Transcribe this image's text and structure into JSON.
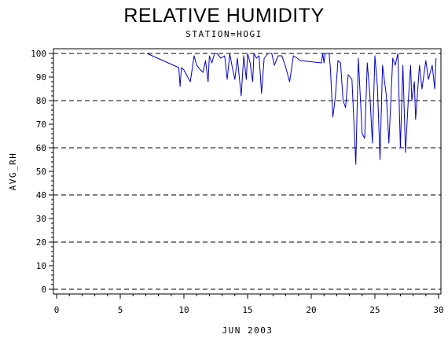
{
  "chart_data": {
    "type": "line",
    "title": "RELATIVE HUMIDITY",
    "subtitle": "STATION=HOGI",
    "xlabel": "JUN 2003",
    "ylabel": "AVG_RH",
    "xlim": [
      0,
      30
    ],
    "ylim": [
      0,
      100
    ],
    "xticks": [
      0,
      5,
      10,
      15,
      20,
      25,
      30
    ],
    "yticks": [
      0,
      10,
      20,
      30,
      40,
      50,
      60,
      70,
      80,
      90,
      100
    ],
    "grid": "horizontal dashed at 0, 20, 40, 60, 80, 100",
    "colors": {
      "line": "#0000cc",
      "axis": "#000000",
      "grid": "#000000"
    },
    "series": [
      {
        "x": [
          7.1,
          9.6,
          9.7,
          9.8,
          10.0,
          10.5,
          10.8,
          11.0,
          11.3,
          11.5,
          11.7,
          11.9,
          12.0,
          12.2,
          12.4,
          12.6,
          12.9,
          13.2,
          13.4,
          13.6,
          13.8,
          14.0,
          14.2,
          14.5,
          14.7,
          14.9,
          15.0,
          15.2,
          15.4,
          15.5,
          15.7,
          15.9,
          16.1,
          16.3,
          16.6,
          16.9,
          17.1,
          17.4,
          17.7,
          18.0,
          18.3,
          18.6,
          18.9,
          19.1,
          20.8,
          20.9,
          21.0,
          21.1,
          21.4,
          21.5,
          21.7,
          21.9,
          22.1,
          22.3,
          22.5,
          22.7,
          22.9,
          23.2,
          23.5,
          23.7,
          24.0,
          24.2,
          24.4,
          24.6,
          24.8,
          25.0,
          25.2,
          25.4,
          25.6,
          25.9,
          26.1,
          26.4,
          26.6,
          26.8,
          27.0,
          27.2,
          27.4,
          27.6,
          27.8,
          27.9,
          28.0,
          28.1,
          28.2,
          28.3,
          28.5,
          28.6,
          28.7,
          29.0,
          29.2,
          29.5,
          29.7,
          29.8
        ],
        "values": [
          100,
          94,
          86,
          94,
          93,
          88,
          99,
          95,
          93,
          92,
          97,
          88,
          99,
          96,
          100,
          100,
          98,
          99,
          89,
          100,
          94,
          89,
          98,
          82,
          99,
          89,
          100,
          96,
          88,
          100,
          98,
          99,
          83,
          98,
          100,
          100,
          95,
          99,
          99,
          94,
          88,
          99,
          98,
          97,
          96,
          100,
          96,
          100,
          100,
          94,
          73,
          82,
          97,
          96,
          80,
          77,
          91,
          89,
          53,
          98,
          66,
          64,
          96,
          83,
          62,
          99,
          86,
          55,
          95,
          82,
          62,
          98,
          95,
          100,
          60,
          95,
          58,
          78,
          95,
          80,
          84,
          88,
          72,
          80,
          95,
          90,
          85,
          97,
          89,
          95,
          85,
          98
        ]
      }
    ]
  }
}
